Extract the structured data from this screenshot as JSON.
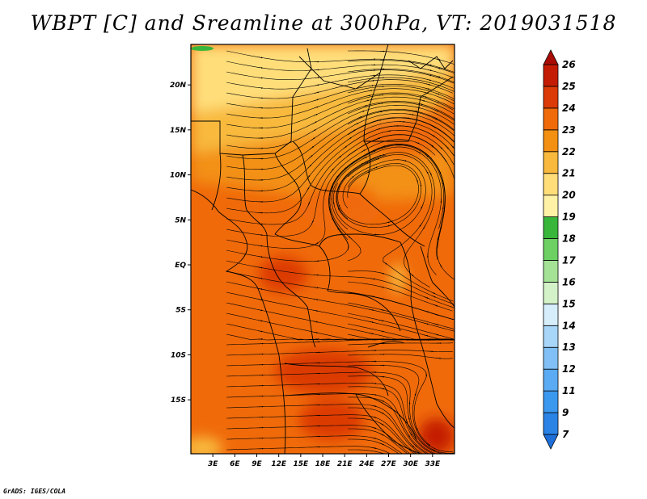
{
  "title": "WBPT [C] and Sreamline at 300hPa, VT: 2019031518",
  "credit": "GrADS: IGES/COLA",
  "map": {
    "lat_range": [
      -21,
      24.5
    ],
    "lon_range": [
      0,
      36
    ],
    "lat_ticks": [
      {
        "value": 20,
        "label": "20N"
      },
      {
        "value": 15,
        "label": "15N"
      },
      {
        "value": 10,
        "label": "10N"
      },
      {
        "value": 5,
        "label": "5N"
      },
      {
        "value": 0,
        "label": "EQ"
      },
      {
        "value": -5,
        "label": "5S"
      },
      {
        "value": -10,
        "label": "10S"
      },
      {
        "value": -15,
        "label": "15S"
      }
    ],
    "lon_ticks": [
      {
        "value": 3,
        "label": "3E"
      },
      {
        "value": 6,
        "label": "6E"
      },
      {
        "value": 9,
        "label": "9E"
      },
      {
        "value": 12,
        "label": "12E"
      },
      {
        "value": 15,
        "label": "15E"
      },
      {
        "value": 18,
        "label": "18E"
      },
      {
        "value": 21,
        "label": "21E"
      },
      {
        "value": 24,
        "label": "24E"
      },
      {
        "value": 27,
        "label": "27E"
      },
      {
        "value": 30,
        "label": "30E"
      },
      {
        "value": 33,
        "label": "33E"
      }
    ],
    "features": [
      {
        "name": "anticyclone-center-sudan",
        "lon": 29,
        "lat": 11.5
      },
      {
        "name": "cyclone-center-mozambique",
        "lon": 35,
        "lat": -18
      }
    ]
  },
  "colorbar": {
    "levels": [
      "7",
      "9",
      "11",
      "12",
      "13",
      "14",
      "15",
      "16",
      "17",
      "18",
      "19",
      "20",
      "21",
      "22",
      "23",
      "24",
      "25",
      "26"
    ],
    "colors": [
      "#1e6fd8",
      "#2a84e6",
      "#3b98ef",
      "#5aabf3",
      "#80c0f6",
      "#a8d6f9",
      "#d6eefc",
      "#d4f2c8",
      "#a4e296",
      "#6cd062",
      "#38b63a",
      "#fff2a6",
      "#ffde7a",
      "#f8b93c",
      "#f39012",
      "#f06a0a",
      "#dc3a06",
      "#c41c04",
      "#a80c04"
    ],
    "label": "WBPT [C]"
  }
}
